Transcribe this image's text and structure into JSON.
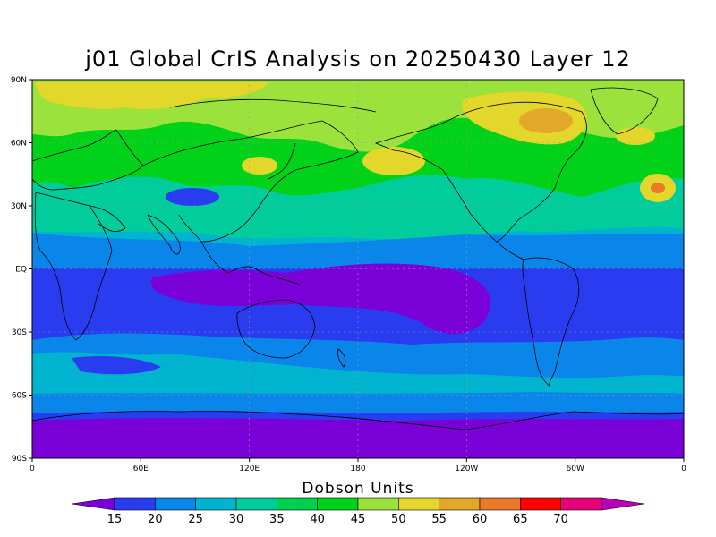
{
  "title": "j01 Global CrIS Analysis on 20250430 Layer 12",
  "units": "Dobson Units",
  "lat_ticks": [
    "90N",
    "60N",
    "30N",
    "EQ",
    "30S",
    "60S",
    "90S"
  ],
  "lon_ticks": [
    "0",
    "60E",
    "120E",
    "180",
    "120W",
    "60W",
    "0"
  ],
  "colorbar": {
    "values": [
      "15",
      "20",
      "25",
      "30",
      "35",
      "40",
      "45",
      "50",
      "55",
      "60",
      "65",
      "70"
    ],
    "colors": [
      "#7a00d8",
      "#2a3cf0",
      "#0a86ea",
      "#00b4d0",
      "#00cc9c",
      "#00d250",
      "#00d21a",
      "#9be23c",
      "#e2d72a",
      "#e2a82a",
      "#ea7a2a",
      "#ff0000",
      "#e8007a",
      "#b800b8"
    ]
  },
  "map_colors": {
    "c15": "#7a00d8",
    "c20": "#2a3cf0",
    "c25": "#0a86ea",
    "c30": "#00b4d0",
    "c35": "#00cc9c",
    "c40": "#00d250",
    "c45": "#00d21a",
    "c50": "#9be23c",
    "c55": "#e2d72a",
    "c60": "#e2a82a",
    "c65": "#ea7a2a"
  }
}
